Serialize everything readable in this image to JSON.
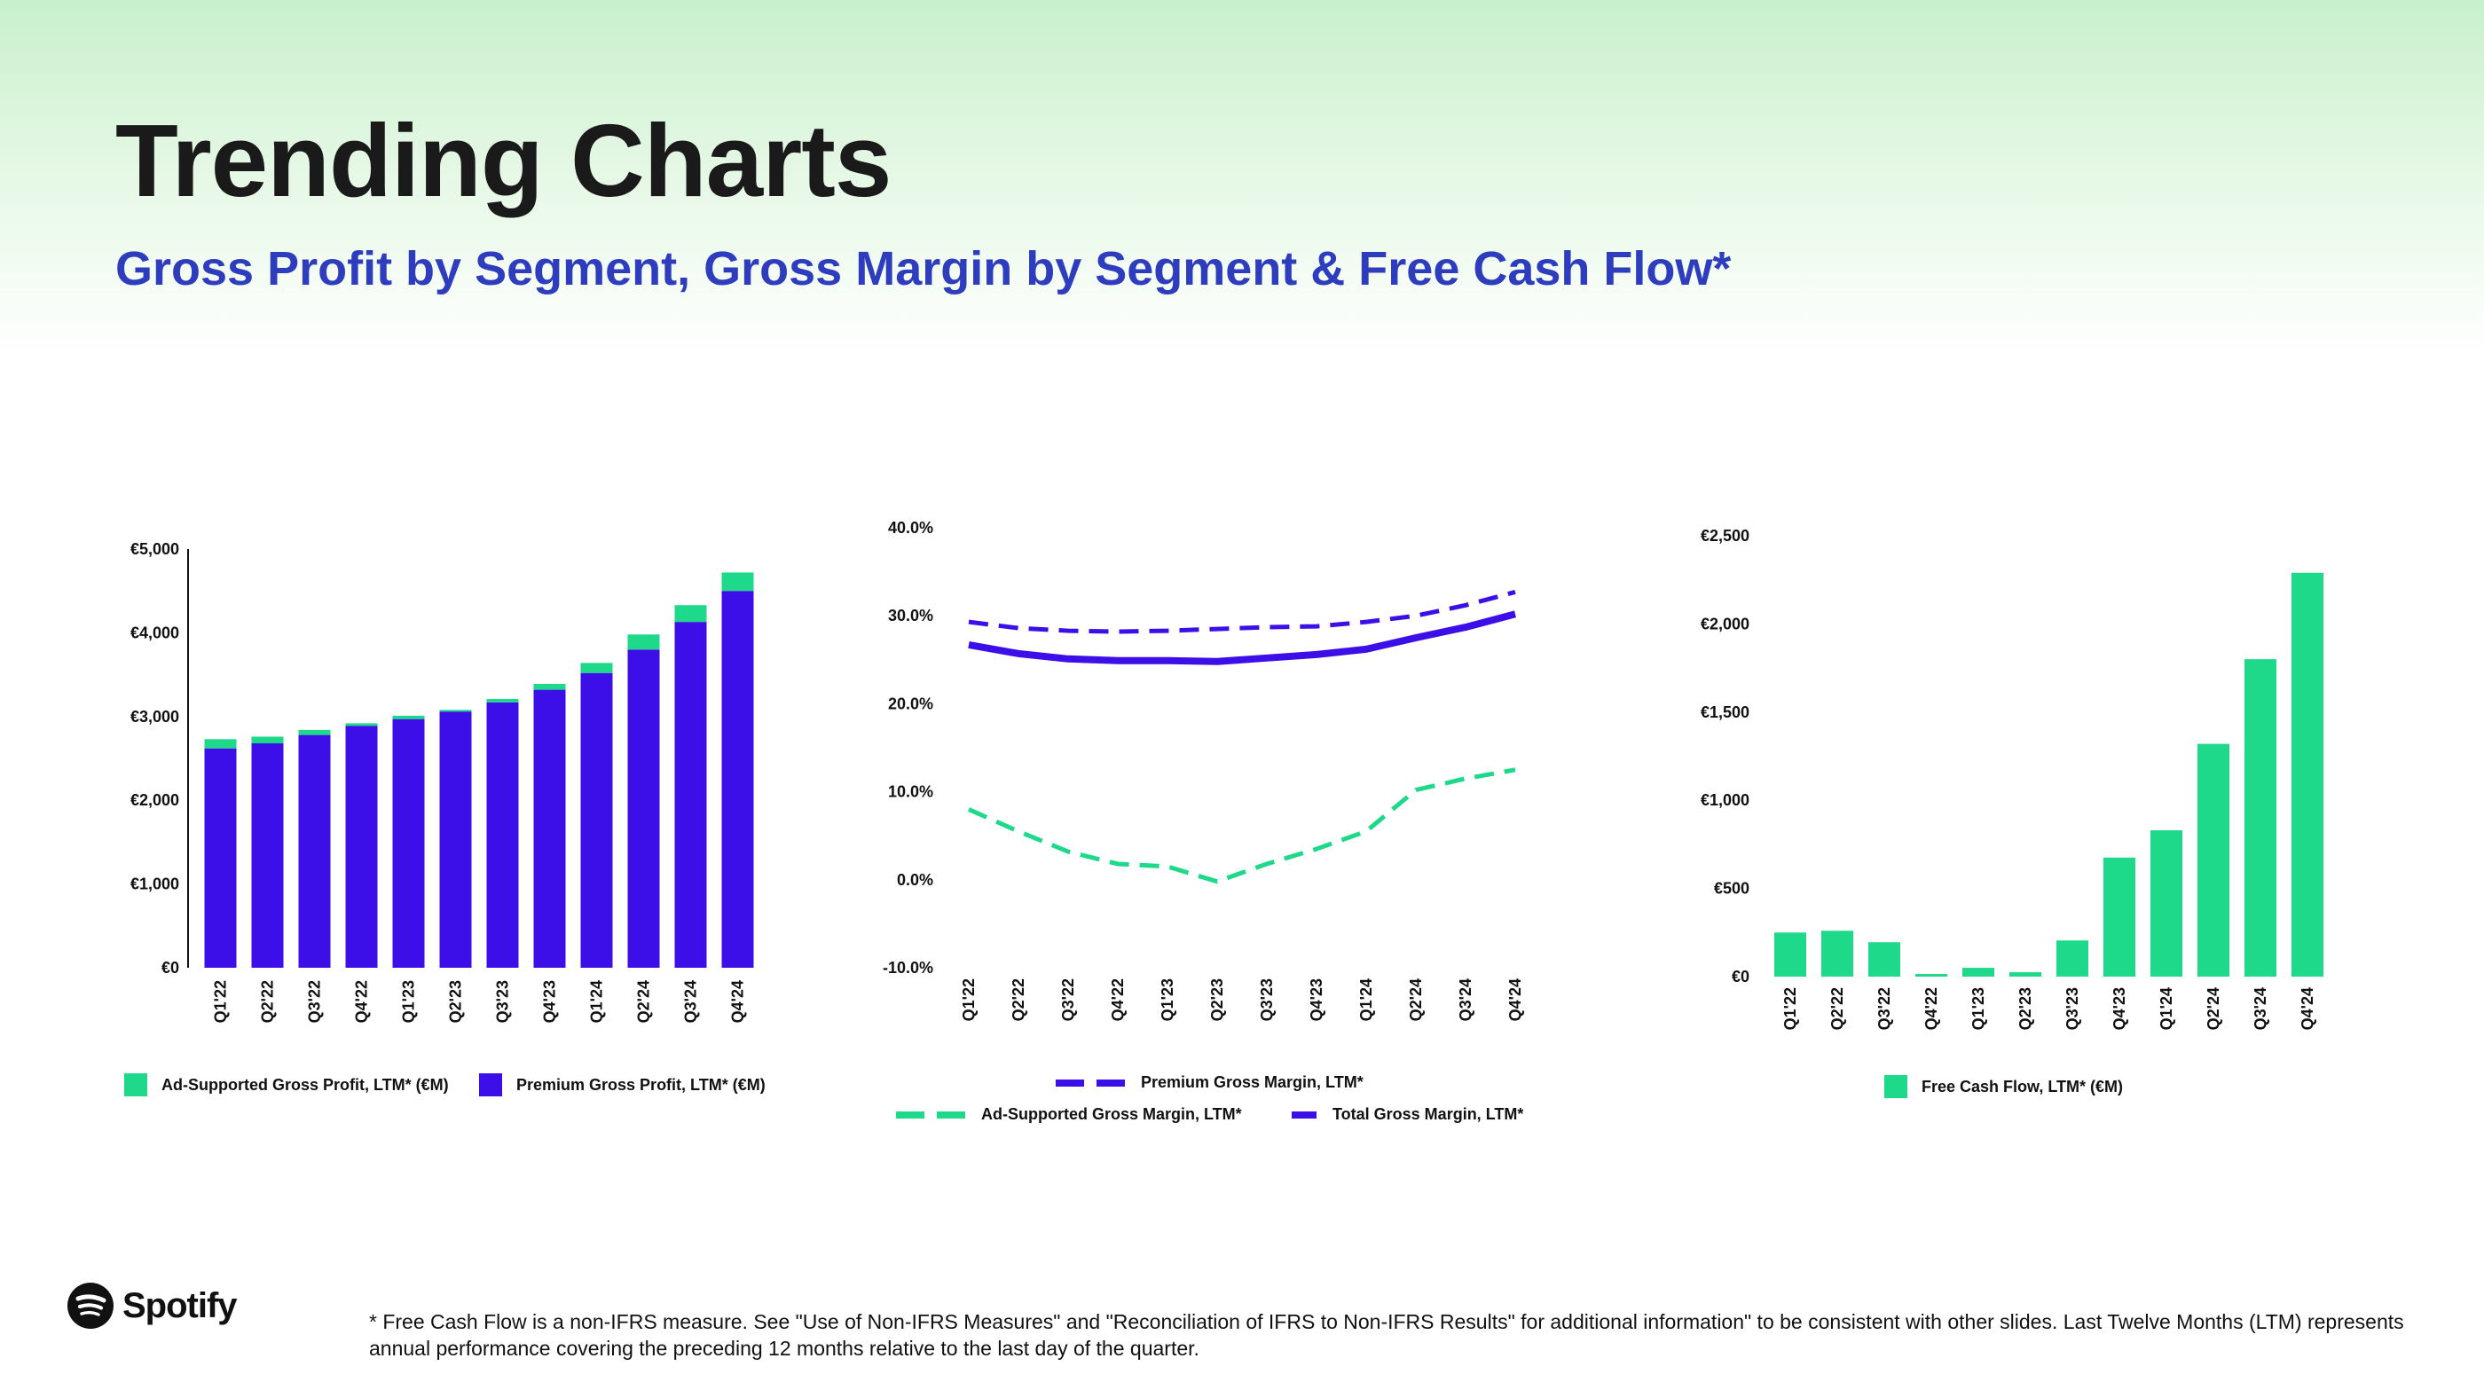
{
  "page": {
    "title": "Trending Charts",
    "subtitle": "Gross Profit by Segment, Gross Margin by Segment & Free Cash Flow*",
    "logo_text": "Spotify",
    "footnote": "* Free Cash Flow is a non-IFRS measure. See \"Use of Non-IFRS Measures\" and \"Reconciliation of IFRS to Non-IFRS Results\" for additional information\" to be consistent with other slides. Last Twelve Months (LTM) represents annual performance covering the preceding 12 months relative to the last day of the quarter."
  },
  "colors": {
    "green": "#1ed98a",
    "purple": "#3d0fe8",
    "title": "#1a1a1a",
    "subtitle": "#2e3dbd"
  },
  "chart_data": [
    {
      "type": "bar",
      "stacked": true,
      "categories": [
        "Q1'22",
        "Q2'22",
        "Q3'22",
        "Q4'22",
        "Q1'23",
        "Q2'23",
        "Q3'23",
        "Q4'23",
        "Q1'24",
        "Q2'24",
        "Q3'24",
        "Q4'24"
      ],
      "series": [
        {
          "name": "Premium Gross Profit, LTM* (€M)",
          "color": "#3d0fe8",
          "values": [
            2620,
            2680,
            2780,
            2890,
            2970,
            3060,
            3170,
            3320,
            3520,
            3800,
            4130,
            4500
          ]
        },
        {
          "name": "Ad-Supported Gross Profit, LTM* (€M)",
          "color": "#1ed98a",
          "values": [
            110,
            80,
            60,
            30,
            40,
            20,
            40,
            70,
            120,
            180,
            200,
            220
          ]
        }
      ],
      "yticks": [
        "€0",
        "€1,000",
        "€2,000",
        "€3,000",
        "€4,000",
        "€5,000"
      ],
      "ylim": [
        0,
        5000
      ],
      "legend_position": "bottom"
    },
    {
      "type": "line",
      "categories": [
        "Q1'22",
        "Q2'22",
        "Q3'22",
        "Q4'22",
        "Q1'23",
        "Q2'23",
        "Q3'23",
        "Q4'23",
        "Q1'24",
        "Q2'24",
        "Q3'24",
        "Q4'24"
      ],
      "series": [
        {
          "name": "Premium Gross Margin, LTM*",
          "style": "dashed",
          "color": "#3d0fe8",
          "values": [
            29.3,
            28.6,
            28.3,
            28.2,
            28.3,
            28.5,
            28.7,
            28.8,
            29.3,
            30.0,
            31.2,
            32.7
          ]
        },
        {
          "name": "Ad-Supported Gross Margin, LTM*",
          "style": "dashed",
          "color": "#1ed98a",
          "values": [
            8.0,
            5.5,
            3.2,
            1.8,
            1.5,
            -0.2,
            1.8,
            3.5,
            5.5,
            10.2,
            11.5,
            12.5
          ]
        },
        {
          "name": "Total Gross Margin, LTM*",
          "style": "solid",
          "color": "#3d0fe8",
          "values": [
            26.7,
            25.7,
            25.1,
            24.9,
            24.9,
            24.8,
            25.2,
            25.6,
            26.2,
            27.5,
            28.7,
            30.2
          ]
        }
      ],
      "yticks": [
        "-10.0%",
        "0.0%",
        "10.0%",
        "20.0%",
        "30.0%",
        "40.0%"
      ],
      "ylim": [
        -10,
        40
      ],
      "legend_position": "bottom"
    },
    {
      "type": "bar",
      "categories": [
        "Q1'22",
        "Q2'22",
        "Q3'22",
        "Q4'22",
        "Q1'23",
        "Q2'23",
        "Q3'23",
        "Q4'23",
        "Q1'24",
        "Q2'24",
        "Q3'24",
        "Q4'24"
      ],
      "series": [
        {
          "name": "Free Cash Flow, LTM* (€M)",
          "color": "#1ed98a",
          "values": [
            250,
            260,
            195,
            15,
            50,
            25,
            205,
            675,
            830,
            1320,
            1800,
            2290
          ]
        }
      ],
      "yticks": [
        "€0",
        "€500",
        "€1,000",
        "€1,500",
        "€2,000",
        "€2,500"
      ],
      "ylim": [
        0,
        2500
      ],
      "legend_position": "bottom"
    }
  ]
}
